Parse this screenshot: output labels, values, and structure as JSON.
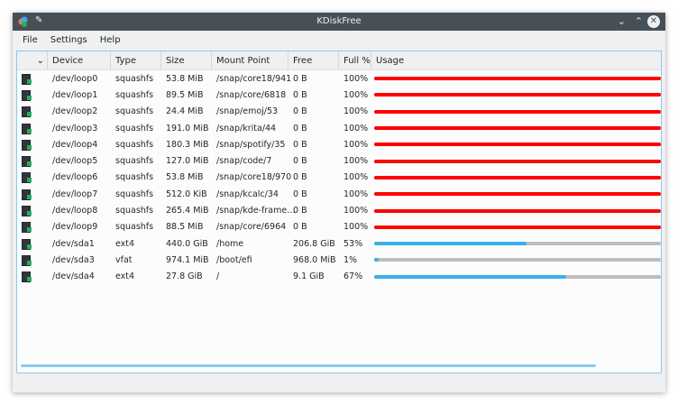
{
  "window": {
    "title": "KDiskFree",
    "app_icon": "kdiskfree-icon",
    "pin_icon": "pin-icon",
    "minimize_icon": "chevron-down-icon",
    "maximize_icon": "chevron-up-icon",
    "close_icon": "close-icon"
  },
  "menu": [
    "File",
    "Settings",
    "Help"
  ],
  "columns": [
    "",
    "Device",
    "Type",
    "Size",
    "Mount Point",
    "Free",
    "Full %",
    "Usage"
  ],
  "colors": {
    "full": "#ff0000",
    "normal": "#3daee9",
    "empty": "#bdbdbd"
  },
  "rows": [
    {
      "device": "/dev/loop0",
      "type": "squashfs",
      "size": "53.8 MiB",
      "mount": "/snap/core18/941",
      "free": "0 B",
      "full": "100%",
      "usage": 100
    },
    {
      "device": "/dev/loop1",
      "type": "squashfs",
      "size": "89.5 MiB",
      "mount": "/snap/core/6818",
      "free": "0 B",
      "full": "100%",
      "usage": 100
    },
    {
      "device": "/dev/loop2",
      "type": "squashfs",
      "size": "24.4 MiB",
      "mount": "/snap/emoj/53",
      "free": "0 B",
      "full": "100%",
      "usage": 100
    },
    {
      "device": "/dev/loop3",
      "type": "squashfs",
      "size": "191.0 MiB",
      "mount": "/snap/krita/44",
      "free": "0 B",
      "full": "100%",
      "usage": 100
    },
    {
      "device": "/dev/loop4",
      "type": "squashfs",
      "size": "180.3 MiB",
      "mount": "/snap/spotify/35",
      "free": "0 B",
      "full": "100%",
      "usage": 100
    },
    {
      "device": "/dev/loop5",
      "type": "squashfs",
      "size": "127.0 MiB",
      "mount": "/snap/code/7",
      "free": "0 B",
      "full": "100%",
      "usage": 100
    },
    {
      "device": "/dev/loop6",
      "type": "squashfs",
      "size": "53.8 MiB",
      "mount": "/snap/core18/970",
      "free": "0 B",
      "full": "100%",
      "usage": 100
    },
    {
      "device": "/dev/loop7",
      "type": "squashfs",
      "size": "512.0 KiB",
      "mount": "/snap/kcalc/34",
      "free": "0 B",
      "full": "100%",
      "usage": 100
    },
    {
      "device": "/dev/loop8",
      "type": "squashfs",
      "size": "265.4 MiB",
      "mount": "/snap/kde-frame…",
      "free": "0 B",
      "full": "100%",
      "usage": 100
    },
    {
      "device": "/dev/loop9",
      "type": "squashfs",
      "size": "88.5 MiB",
      "mount": "/snap/core/6964",
      "free": "0 B",
      "full": "100%",
      "usage": 100
    },
    {
      "device": "/dev/sda1",
      "type": "ext4",
      "size": "440.0 GiB",
      "mount": "/home",
      "free": "206.8 GiB",
      "full": "53%",
      "usage": 53
    },
    {
      "device": "/dev/sda3",
      "type": "vfat",
      "size": "974.1 MiB",
      "mount": "/boot/efi",
      "free": "968.0 MiB",
      "full": "1%",
      "usage": 1
    },
    {
      "device": "/dev/sda4",
      "type": "ext4",
      "size": "27.8 GiB",
      "mount": "/",
      "free": "9.1 GiB",
      "full": "67%",
      "usage": 67
    }
  ]
}
